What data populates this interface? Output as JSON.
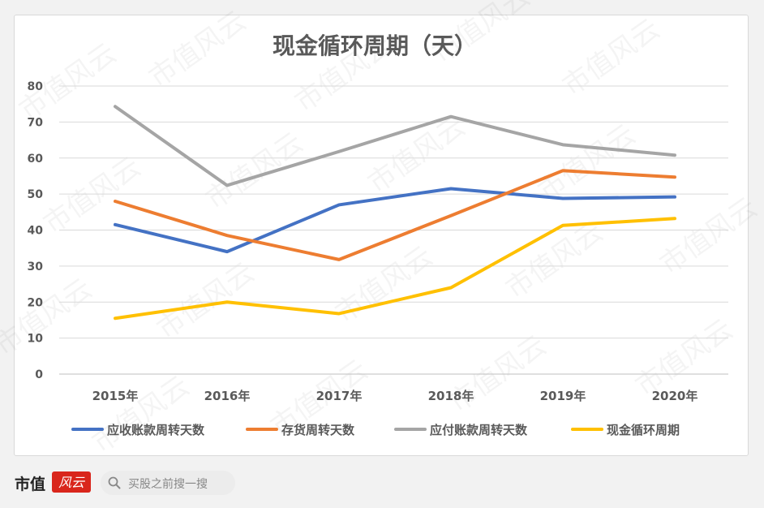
{
  "chart_data": {
    "type": "line",
    "title": "现金循环周期（天）",
    "categories": [
      "2015年",
      "2016年",
      "2017年",
      "2018年",
      "2019年",
      "2020年"
    ],
    "ylim": [
      0,
      80
    ],
    "yticks": [
      0,
      10,
      20,
      30,
      40,
      50,
      60,
      70,
      80
    ],
    "grid": true,
    "legend_position": "bottom",
    "series": [
      {
        "name": "应收账款周转天数",
        "color": "#4472c4",
        "values": [
          41.5,
          34.0,
          47.0,
          51.5,
          48.8,
          49.2
        ]
      },
      {
        "name": "存货周转天数",
        "color": "#ed7d31",
        "values": [
          48.0,
          38.5,
          31.8,
          44.0,
          56.5,
          54.7
        ]
      },
      {
        "name": "应付账款周转天数",
        "color": "#a5a5a5",
        "values": [
          74.3,
          52.4,
          61.8,
          71.5,
          63.7,
          60.8
        ]
      },
      {
        "name": "现金循环周期",
        "color": "#ffc000",
        "values": [
          15.5,
          20.0,
          16.8,
          24.0,
          41.3,
          43.2
        ]
      }
    ]
  },
  "watermark": "市值风云",
  "footer": {
    "brand": "市值",
    "logo_text": "风云",
    "search_placeholder": "买股之前搜一搜"
  }
}
